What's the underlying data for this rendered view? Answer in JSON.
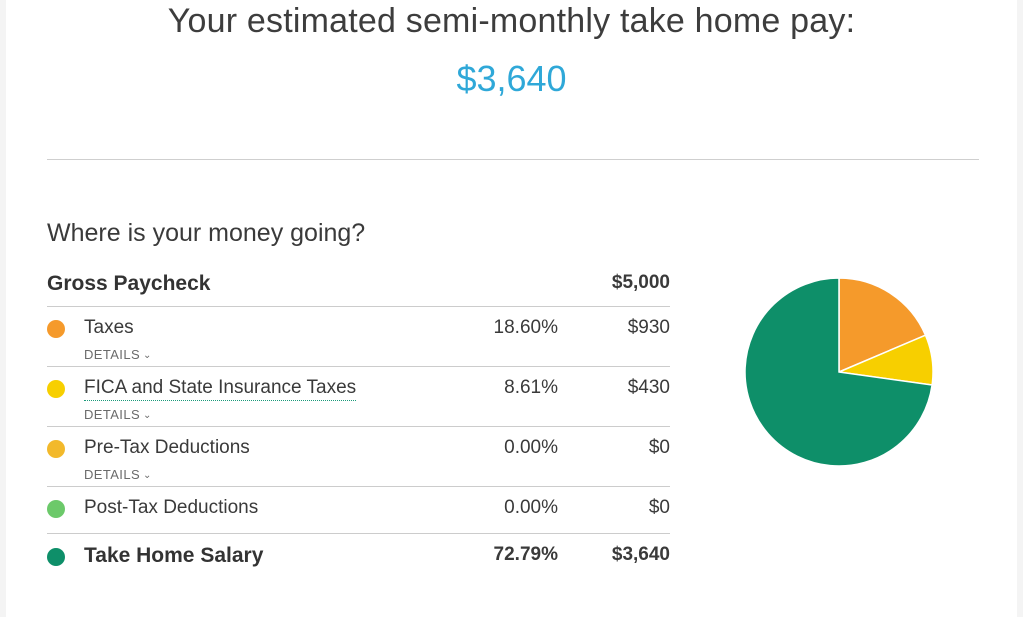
{
  "header": {
    "title": "Your estimated semi-monthly take home pay:",
    "amount": "$3,640"
  },
  "section": {
    "title": "Where is your money going?"
  },
  "table": {
    "gross": {
      "label": "Gross Paycheck",
      "value": "$5,000"
    },
    "details_label": "DETAILS",
    "rows": [
      {
        "label": "Taxes",
        "percent": "18.60%",
        "value": "$930",
        "color": "#f59a2b",
        "has_details": true
      },
      {
        "label": "FICA and State Insurance Taxes",
        "percent": "8.61%",
        "value": "$430",
        "color": "#f7cf00",
        "has_details": true
      },
      {
        "label": "Pre-Tax Deductions",
        "percent": "0.00%",
        "value": "$0",
        "color": "#f2b92b",
        "has_details": true
      },
      {
        "label": "Post-Tax Deductions",
        "percent": "0.00%",
        "value": "$0",
        "color": "#6cc96a",
        "has_details": false
      }
    ],
    "total": {
      "label": "Take Home Salary",
      "percent": "72.79%",
      "value": "$3,640",
      "color": "#0e8f69"
    }
  },
  "chart_data": {
    "type": "pie",
    "slices": [
      {
        "label": "Taxes",
        "value": 18.6,
        "color": "#f59a2b"
      },
      {
        "label": "FICA and State Insurance Taxes",
        "value": 8.61,
        "color": "#f7cf00"
      },
      {
        "label": "Pre-Tax Deductions",
        "value": 0.0,
        "color": "#f2b92b"
      },
      {
        "label": "Post-Tax Deductions",
        "value": 0.0,
        "color": "#6cc96a"
      },
      {
        "label": "Take Home Salary",
        "value": 72.79,
        "color": "#0e8f69"
      }
    ]
  }
}
